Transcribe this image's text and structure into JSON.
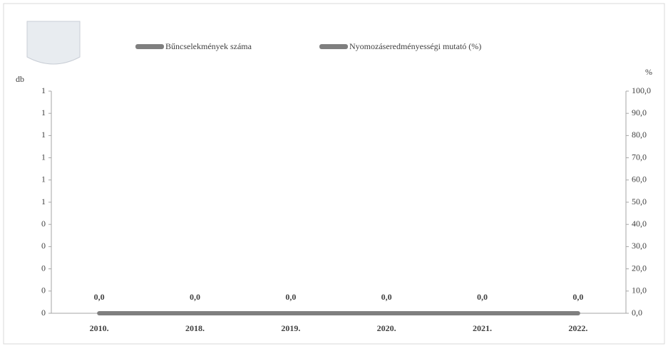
{
  "chart_data": {
    "type": "bar-line",
    "categories": [
      "2010.",
      "2018.",
      "2019.",
      "2020.",
      "2021.",
      "2022."
    ],
    "series": [
      {
        "name": "Bűncselekmények száma",
        "type": "bar",
        "color": "#7f7f7f",
        "values": [
          0,
          0,
          0,
          0,
          0,
          0
        ]
      },
      {
        "name": "Nyomozáseredményességi mutató (%)",
        "type": "line",
        "axis": "y2",
        "color": "#7f7f7f",
        "values": [
          0,
          0,
          0,
          0,
          0,
          0
        ],
        "value_labels": [
          "0,0",
          "0,0",
          "0,0",
          "0,0",
          "0,0",
          "0,0"
        ]
      }
    ],
    "y_label": "db",
    "y2_label": "%",
    "ylim": [
      0,
      1
    ],
    "yticks": [
      0,
      {
        "value": 0.1,
        "label": "0"
      },
      {
        "value": 0.2,
        "label": "0"
      },
      {
        "value": 0.3,
        "label": "0"
      },
      {
        "value": 0.4,
        "label": "0"
      },
      {
        "value": 0.5,
        "label": "1"
      },
      {
        "value": 0.6,
        "label": "1"
      },
      {
        "value": 0.7,
        "label": "1"
      },
      {
        "value": 0.8,
        "label": "1"
      },
      {
        "value": 0.9,
        "label": "1"
      },
      1
    ],
    "y2lim": [
      0,
      100
    ],
    "y2ticks": [
      {
        "value": 0,
        "label": "0,0"
      },
      {
        "value": 10,
        "label": "10,0"
      },
      {
        "value": 20,
        "label": "20,0"
      },
      {
        "value": 30,
        "label": "30,0"
      },
      {
        "value": 40,
        "label": "40,0"
      },
      {
        "value": 50,
        "label": "50,0"
      },
      {
        "value": 60,
        "label": "60,0"
      },
      {
        "value": 70,
        "label": "70,0"
      },
      {
        "value": 80,
        "label": "80,0"
      },
      {
        "value": 90,
        "label": "90,0"
      },
      {
        "value": 100,
        "label": "100,0"
      }
    ],
    "grid": false
  }
}
